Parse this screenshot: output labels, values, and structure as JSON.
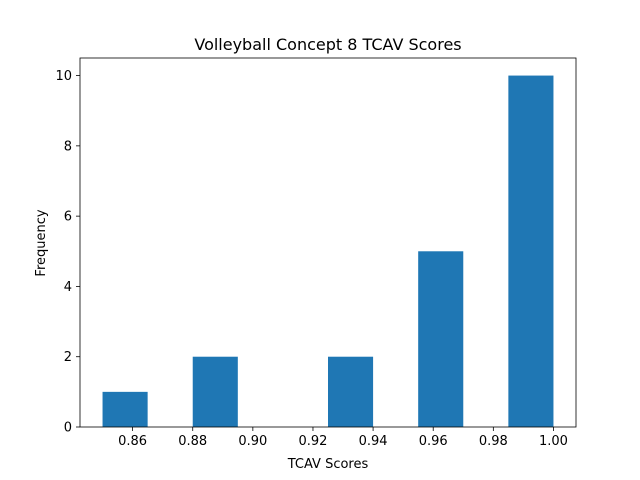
{
  "chart_data": {
    "type": "bar",
    "title": "Volleyball Concept 8 TCAV Scores",
    "xlabel": "TCAV Scores",
    "ylabel": "Frequency",
    "bins": [
      {
        "x0": 0.85,
        "x1": 0.865,
        "value": 1
      },
      {
        "x0": 0.865,
        "x1": 0.88,
        "value": 0
      },
      {
        "x0": 0.88,
        "x1": 0.895,
        "value": 2
      },
      {
        "x0": 0.895,
        "x1": 0.91,
        "value": 0
      },
      {
        "x0": 0.91,
        "x1": 0.925,
        "value": 0
      },
      {
        "x0": 0.925,
        "x1": 0.94,
        "value": 2
      },
      {
        "x0": 0.94,
        "x1": 0.955,
        "value": 0
      },
      {
        "x0": 0.955,
        "x1": 0.97,
        "value": 5
      },
      {
        "x0": 0.97,
        "x1": 0.985,
        "value": 0
      },
      {
        "x0": 0.985,
        "x1": 1.0,
        "value": 10
      }
    ],
    "xlim": [
      0.8425,
      1.0075
    ],
    "ylim": [
      0,
      10.5
    ],
    "xticks": [
      "0.86",
      "0.88",
      "0.90",
      "0.92",
      "0.94",
      "0.96",
      "0.98",
      "1.00"
    ],
    "yticks": [
      "0",
      "2",
      "4",
      "6",
      "8",
      "10"
    ],
    "bar_color": "#1f77b4",
    "grid": false
  }
}
